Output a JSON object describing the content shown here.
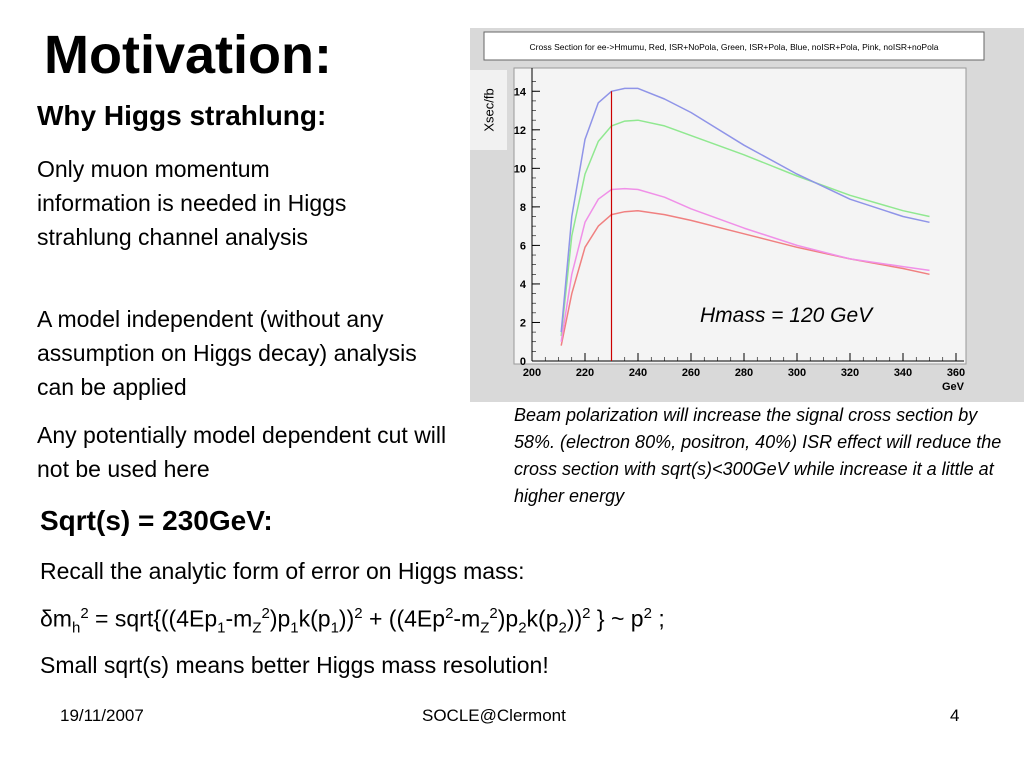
{
  "slide": {
    "title": "Motivation:",
    "subtitle": "Why Higgs strahlung:",
    "para1": "Only muon momentum information is needed in Higgs strahlung channel analysis",
    "para2": "A model independent (without any assumption on Higgs decay) analysis can be applied",
    "para3": "Any potentially model dependent cut will not be used here",
    "sqrt_heading": "Sqrt(s) = 230GeV:",
    "recall": "Recall the analytic form of error on Higgs mass:",
    "formula": {
      "delta_m": "δm",
      "h": "h",
      "two": "2",
      "eq": " = sqrt{((4Ep",
      "one": "1",
      "minus_m": "-m",
      "Z": "Z",
      "close_p": ")p",
      "k_open": "k(p",
      "close_pow": "))",
      "plus": " + ((4Ep",
      "end": " }  ~ p",
      "semicolon": " ;"
    },
    "conclusion": "Small sqrt(s) means better Higgs mass resolution!",
    "beam_note": "Beam polarization will increase the signal cross section by 58%. (electron 80%, positron, 40%) ISR effect will reduce the cross section with sqrt(s)<300GeV while increase it a little at higher energy"
  },
  "footer": {
    "date": "19/11/2007",
    "center": "SOCLE@Clermont",
    "page": "4"
  },
  "chart_data": {
    "type": "line",
    "title": "Cross Section for ee->Hmumu, Red, ISR+NoPola, Green, ISR+Pola, Blue, noISR+Pola, Pink, noISR+noPola",
    "ylabel": "Xsec/fb",
    "xlabel": "GeV",
    "annotation": "Hmass = 120 GeV",
    "xlim": [
      200,
      360
    ],
    "ylim": [
      0,
      15
    ],
    "xticks": [
      200,
      220,
      240,
      260,
      280,
      300,
      320,
      340,
      360
    ],
    "yticks": [
      0,
      2,
      4,
      6,
      8,
      10,
      12,
      14
    ],
    "marker_x": 230,
    "x": [
      211,
      215,
      220,
      225,
      230,
      235,
      240,
      250,
      260,
      280,
      300,
      320,
      340,
      350
    ],
    "series": [
      {
        "name": "Red",
        "color": "#f08080",
        "values": [
          0.8,
          3.5,
          5.9,
          7.0,
          7.6,
          7.75,
          7.8,
          7.6,
          7.3,
          6.6,
          5.9,
          5.3,
          4.8,
          4.5
        ]
      },
      {
        "name": "Green",
        "color": "#90e890",
        "values": [
          1.3,
          6.5,
          9.7,
          11.4,
          12.2,
          12.45,
          12.5,
          12.2,
          11.7,
          10.7,
          9.6,
          8.6,
          7.8,
          7.5
        ]
      },
      {
        "name": "Blue",
        "color": "#8f94e8",
        "values": [
          1.5,
          7.5,
          11.5,
          13.4,
          14.0,
          14.15,
          14.15,
          13.6,
          12.9,
          11.2,
          9.7,
          8.4,
          7.5,
          7.2
        ]
      },
      {
        "name": "Pink",
        "color": "#f090e8",
        "values": [
          1.0,
          4.5,
          7.2,
          8.4,
          8.9,
          8.95,
          8.9,
          8.5,
          7.9,
          6.9,
          6.0,
          5.3,
          4.9,
          4.7
        ]
      }
    ]
  }
}
